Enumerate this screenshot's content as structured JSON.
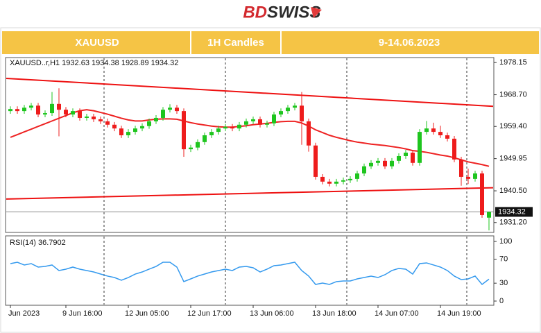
{
  "header": {
    "logo": {
      "part1": "BD",
      "part2": "SWISS"
    },
    "cells": [
      "XAUUSD",
      "1H Candles",
      "9-14.06.2023"
    ]
  },
  "chart_data": [
    {
      "type": "candlestick",
      "label": "XAUUSD..r,H1 1932.63 1934.38 1928.89 1934.32",
      "categories": [
        "Jun 2023",
        null,
        null,
        null,
        null,
        null,
        null,
        null,
        "9 Jun 16:00",
        null,
        null,
        null,
        null,
        null,
        null,
        null,
        null,
        "12 Jun 05:00",
        null,
        null,
        null,
        null,
        null,
        null,
        null,
        null,
        "12 Jun 17:00",
        null,
        null,
        null,
        null,
        null,
        null,
        null,
        null,
        "13 Jun 06:00",
        null,
        null,
        null,
        null,
        null,
        null,
        null,
        null,
        "13 Jun 18:00",
        null,
        null,
        null,
        null,
        null,
        null,
        null,
        null,
        "14 Jun 07:00",
        null,
        null,
        null,
        null,
        null,
        null,
        null,
        null,
        "14 Jun 19:00",
        null,
        null,
        null,
        null,
        null,
        null,
        null
      ],
      "open": [
        1963.9,
        1964.5,
        1963.9,
        1964.9,
        1965.5,
        1962.9,
        1963.3,
        1966.0,
        1964.3,
        1962.9,
        1963.9,
        1961.9,
        1962.3,
        1961.5,
        1960.9,
        1959.9,
        1958.8,
        1956.8,
        1957.8,
        1958.8,
        1959.5,
        1960.9,
        1961.9,
        1964.3,
        1964.9,
        1963.9,
        1952.7,
        1953.2,
        1954.8,
        1956.8,
        1957.8,
        1958.8,
        1959.3,
        1958.8,
        1959.9,
        1960.9,
        1961.5,
        1959.9,
        1960.3,
        1962.9,
        1963.9,
        1964.9,
        1965.5,
        1960.9,
        1953.8,
        1944.6,
        1943.2,
        1942.6,
        1943.2,
        1943.6,
        1944.0,
        1945.6,
        1947.7,
        1948.7,
        1949.3,
        1947.7,
        1949.3,
        1950.7,
        1951.7,
        1948.7,
        1957.8,
        1958.8,
        1957.8,
        1956.8,
        1955.8,
        1949.7,
        1944.6,
        1944.0,
        1945.6,
        1932.63
      ],
      "high": [
        1965.3,
        1965.3,
        1965.7,
        1966.3,
        1966.3,
        1964.1,
        1969.5,
        1970.6,
        1965.1,
        1964.7,
        1964.7,
        1963.1,
        1963.1,
        1962.3,
        1961.7,
        1960.7,
        1959.6,
        1958.6,
        1959.6,
        1960.3,
        1961.7,
        1962.7,
        1965.1,
        1965.9,
        1965.7,
        1964.7,
        1954.0,
        1955.6,
        1957.6,
        1958.6,
        1959.6,
        1960.1,
        1960.1,
        1960.7,
        1961.7,
        1962.3,
        1962.3,
        1961.1,
        1963.7,
        1964.7,
        1965.7,
        1966.3,
        1969.5,
        1961.7,
        1954.6,
        1945.4,
        1944.0,
        1944.0,
        1944.4,
        1944.8,
        1946.4,
        1948.5,
        1949.5,
        1950.1,
        1950.1,
        1950.1,
        1951.5,
        1952.5,
        1952.5,
        1958.6,
        1961.0,
        1960.5,
        1959.6,
        1957.6,
        1956.6,
        1950.5,
        1947.0,
        1946.4,
        1946.4,
        1934.38
      ],
      "low": [
        1963.1,
        1963.1,
        1963.1,
        1964.1,
        1962.1,
        1962.1,
        1962.5,
        1956.5,
        1962.1,
        1962.1,
        1961.1,
        1961.1,
        1960.7,
        1960.1,
        1959.1,
        1958.0,
        1956.0,
        1956.0,
        1957.0,
        1958.0,
        1958.7,
        1960.1,
        1961.1,
        1963.5,
        1963.1,
        1950.5,
        1951.9,
        1952.4,
        1954.0,
        1956.0,
        1957.0,
        1958.0,
        1958.0,
        1958.0,
        1959.1,
        1960.1,
        1959.1,
        1959.1,
        1959.5,
        1962.1,
        1963.1,
        1964.1,
        1954.0,
        1952.0,
        1943.8,
        1942.4,
        1941.8,
        1941.8,
        1942.4,
        1942.8,
        1943.2,
        1944.8,
        1946.9,
        1947.9,
        1946.9,
        1946.9,
        1948.5,
        1949.9,
        1947.9,
        1947.9,
        1957.0,
        1957.0,
        1956.0,
        1955.0,
        1948.9,
        1942.0,
        1942.5,
        1943.2,
        1932.6,
        1928.89
      ],
      "close": [
        1964.5,
        1963.9,
        1964.9,
        1965.5,
        1962.9,
        1963.3,
        1966.0,
        1964.3,
        1962.9,
        1963.9,
        1961.9,
        1962.3,
        1961.5,
        1960.9,
        1959.9,
        1958.8,
        1956.8,
        1957.8,
        1958.8,
        1959.5,
        1960.9,
        1961.9,
        1964.3,
        1964.9,
        1963.9,
        1952.7,
        1953.2,
        1954.8,
        1956.8,
        1957.8,
        1958.8,
        1959.3,
        1958.8,
        1959.9,
        1960.9,
        1961.5,
        1959.9,
        1960.3,
        1962.9,
        1963.9,
        1964.9,
        1965.5,
        1960.9,
        1953.8,
        1944.6,
        1943.2,
        1942.6,
        1943.2,
        1943.6,
        1944.0,
        1945.6,
        1947.7,
        1948.7,
        1949.3,
        1947.7,
        1949.3,
        1950.7,
        1951.7,
        1948.7,
        1957.8,
        1958.8,
        1957.8,
        1956.8,
        1955.8,
        1949.7,
        1944.6,
        1944.0,
        1945.6,
        1933.4,
        1934.32
      ],
      "up_color": "#1ec51e",
      "down_color": "#ee1c1c",
      "moving_average": {
        "color": "#ee2222",
        "values": [
          1956.2,
          1957.0,
          1957.8,
          1958.6,
          1959.4,
          1960.2,
          1961.0,
          1961.8,
          1962.6,
          1963.4,
          1964.0,
          1964.3,
          1964.0,
          1963.5,
          1963.0,
          1962.4,
          1961.8,
          1961.3,
          1961.0,
          1961.0,
          1961.3,
          1961.5,
          1961.6,
          1961.6,
          1961.5,
          1961.0,
          1960.5,
          1960.1,
          1959.8,
          1959.5,
          1959.3,
          1959.2,
          1959.2,
          1959.4,
          1959.6,
          1959.9,
          1960.1,
          1960.3,
          1960.6,
          1960.8,
          1960.9,
          1960.9,
          1960.4,
          1959.5,
          1958.4,
          1957.6,
          1956.8,
          1956.2,
          1955.7,
          1955.2,
          1954.8,
          1954.5,
          1954.2,
          1954.0,
          1953.8,
          1953.5,
          1953.2,
          1952.8,
          1952.3,
          1952.1,
          1951.8,
          1951.4,
          1951.0,
          1950.7,
          1950.2,
          1949.6,
          1949.0,
          1948.6,
          1948.2,
          1947.7
        ]
      },
      "trendlines": [
        {
          "color": "#ee1111",
          "values": [
            1973.5,
            1965.3
          ]
        },
        {
          "color": "#ee1111",
          "values": [
            1938.1,
            1941.4
          ]
        }
      ],
      "last_price": 1934.32,
      "ylim": [
        1928.3,
        1979.6
      ],
      "yticks": [
        1978.15,
        {
          "value": 1968.7,
          "label": "1968.70"
        },
        {
          "value": 1959.4,
          "label": "1959.40"
        },
        1949.95,
        {
          "value": 1940.5,
          "label": "1940.50"
        },
        {
          "value": 1931.2,
          "label": "1931.20"
        }
      ]
    },
    {
      "type": "line",
      "label": "RSI(14) 36.7902",
      "color": "#3399ee",
      "values": [
        62.8,
        65.1,
        60.5,
        62.8,
        57.0,
        58.1,
        60.5,
        51.2,
        53.5,
        57.0,
        53.5,
        51.2,
        48.8,
        45.3,
        41.9,
        39.5,
        34.9,
        39.5,
        45.3,
        48.8,
        53.5,
        58.1,
        65.1,
        65.1,
        57.0,
        32.6,
        37.2,
        41.9,
        45.3,
        48.8,
        51.2,
        53.5,
        51.2,
        57.0,
        58.1,
        55.8,
        48.8,
        53.5,
        59.3,
        60.5,
        62.8,
        65.1,
        51.2,
        41.9,
        27.9,
        30.2,
        27.9,
        32.6,
        33.7,
        33.7,
        37.2,
        39.5,
        41.9,
        39.5,
        44.2,
        51.2,
        54.7,
        53.5,
        45.3,
        62.8,
        64.0,
        60.5,
        57.0,
        51.2,
        41.9,
        36.0,
        37.2,
        41.9,
        27.9,
        36.79
      ],
      "ylim": [
        -7,
        109.3
      ],
      "yticks": [
        100,
        70,
        30,
        0
      ]
    }
  ]
}
